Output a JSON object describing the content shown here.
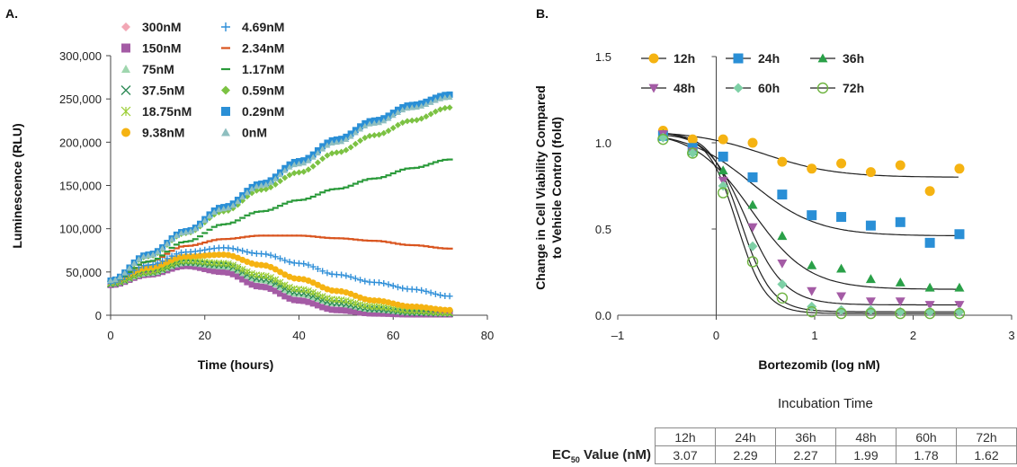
{
  "chart_data": [
    {
      "panel": "A.",
      "type": "scatter",
      "xlabel": "Time (hours)",
      "ylabel": "Luminescence (RLU)",
      "xlim": [
        0,
        80
      ],
      "ylim": [
        0,
        300000
      ],
      "xticks": [
        "0",
        "20",
        "40",
        "60",
        "80"
      ],
      "yticks": [
        "0",
        "50,000",
        "100,000",
        "150,000",
        "200,000",
        "250,000",
        "300,000"
      ],
      "legend_placement": "top-left, two columns",
      "series": [
        {
          "name": "300nM",
          "marker": "diamond",
          "color": "#f2a7b5",
          "x": [
            0,
            8,
            16,
            24,
            32,
            40,
            48,
            56,
            64,
            72
          ],
          "y": [
            35000,
            47000,
            57000,
            50000,
            33000,
            17000,
            6000,
            2000,
            1000,
            1000
          ]
        },
        {
          "name": "150nM",
          "marker": "square",
          "color": "#a45ba5",
          "x": [
            0,
            8,
            16,
            24,
            32,
            40,
            48,
            56,
            64,
            72
          ],
          "y": [
            35000,
            47000,
            57000,
            50000,
            33000,
            17000,
            6000,
            2000,
            1000,
            1000
          ]
        },
        {
          "name": "75nM",
          "marker": "triangle",
          "color": "#9fd6ae",
          "x": [
            0,
            8,
            16,
            24,
            32,
            40,
            48,
            56,
            64,
            72
          ],
          "y": [
            36000,
            48000,
            60000,
            56000,
            40000,
            24000,
            13000,
            6000,
            3000,
            2000
          ]
        },
        {
          "name": "37.5nM",
          "marker": "x",
          "color": "#2e8b57",
          "x": [
            0,
            8,
            16,
            24,
            32,
            40,
            48,
            56,
            64,
            72
          ],
          "y": [
            36000,
            49000,
            61000,
            58000,
            42000,
            26000,
            14000,
            7000,
            3000,
            2000
          ]
        },
        {
          "name": "18.75nM",
          "marker": "asterisk",
          "color": "#9acd32",
          "x": [
            0,
            8,
            16,
            24,
            32,
            40,
            48,
            56,
            64,
            72
          ],
          "y": [
            37000,
            50000,
            63000,
            60000,
            46000,
            30000,
            18000,
            10000,
            5000,
            3000
          ]
        },
        {
          "name": "9.38nM",
          "marker": "circle",
          "color": "#f5b312",
          "x": [
            0,
            8,
            16,
            24,
            32,
            40,
            48,
            56,
            64,
            72
          ],
          "y": [
            40000,
            55000,
            68000,
            70000,
            58000,
            42000,
            28000,
            17000,
            10000,
            6000
          ]
        },
        {
          "name": "4.69nM",
          "marker": "plus",
          "color": "#2f8fd8",
          "x": [
            0,
            8,
            16,
            24,
            32,
            40,
            48,
            56,
            64,
            72
          ],
          "y": [
            38000,
            58000,
            73000,
            78000,
            71000,
            60000,
            47000,
            38000,
            30000,
            22000
          ]
        },
        {
          "name": "2.34nM",
          "marker": "dash",
          "color": "#d9541e",
          "x": [
            0,
            8,
            16,
            24,
            32,
            40,
            48,
            56,
            64,
            72
          ],
          "y": [
            38000,
            62000,
            80000,
            88000,
            92000,
            92000,
            89000,
            86000,
            81000,
            77000
          ]
        },
        {
          "name": "1.17nM",
          "marker": "dash",
          "color": "#2a9a3a",
          "x": [
            0,
            8,
            16,
            24,
            32,
            40,
            48,
            56,
            64,
            72
          ],
          "y": [
            38000,
            62000,
            85000,
            105000,
            120000,
            133000,
            146000,
            158000,
            170000,
            180000
          ]
        },
        {
          "name": "0.59nM",
          "marker": "diamond",
          "color": "#7cc243",
          "x": [
            0,
            8,
            16,
            24,
            32,
            40,
            48,
            56,
            64,
            72
          ],
          "y": [
            40000,
            68000,
            95000,
            120000,
            145000,
            165000,
            188000,
            208000,
            225000,
            240000
          ]
        },
        {
          "name": "0.29nM",
          "marker": "square",
          "color": "#2a8fd6",
          "x": [
            0,
            8,
            16,
            24,
            32,
            40,
            48,
            56,
            64,
            72
          ],
          "y": [
            40000,
            70000,
            97000,
            125000,
            152000,
            178000,
            203000,
            225000,
            243000,
            255000
          ]
        },
        {
          "name": "0nM",
          "marker": "triangle",
          "color": "#8fbfc0",
          "x": [
            0,
            8,
            16,
            24,
            32,
            40,
            48,
            56,
            64,
            72
          ],
          "y": [
            40000,
            69000,
            96000,
            123000,
            150000,
            175000,
            200000,
            222000,
            240000,
            252000
          ]
        }
      ]
    },
    {
      "panel": "B.",
      "type": "scatter",
      "xlabel": "Bortezomib (log nM)",
      "ylabel_line1": "Change in Cell Viability Compared",
      "ylabel_line2": "to Vehicle Control (fold)",
      "xlim": [
        -1,
        3
      ],
      "ylim": [
        0,
        1.5
      ],
      "xticks": [
        "–1",
        "0",
        "1",
        "2",
        "3"
      ],
      "yticks": [
        "0.0",
        "0.5",
        "1.0",
        "1.5"
      ],
      "legend_placement": "top, three columns",
      "x": [
        -0.54,
        -0.24,
        0.07,
        0.37,
        0.67,
        0.97,
        1.27,
        1.57,
        1.87,
        2.17,
        2.47
      ],
      "series": [
        {
          "name": "12h",
          "marker": "circle",
          "color": "#f5b312",
          "y": [
            1.07,
            1.02,
            1.02,
            1.0,
            0.89,
            0.85,
            0.88,
            0.83,
            0.87,
            0.72,
            0.85
          ],
          "fit": {
            "top": 1.07,
            "bottom": 0.8,
            "log_ec50": 0.487,
            "hill": 1.2
          }
        },
        {
          "name": "24h",
          "marker": "square",
          "color": "#2a8fd6",
          "y": [
            1.04,
            0.97,
            0.92,
            0.8,
            0.7,
            0.58,
            0.57,
            0.52,
            0.54,
            0.42,
            0.47
          ],
          "fit": {
            "top": 1.07,
            "bottom": 0.46,
            "log_ec50": 0.36,
            "hill": 1.3
          }
        },
        {
          "name": "36h",
          "marker": "triangle",
          "color": "#2aa048",
          "y": [
            1.05,
            0.95,
            0.84,
            0.64,
            0.46,
            0.29,
            0.27,
            0.21,
            0.19,
            0.16,
            0.16
          ],
          "fit": {
            "top": 1.07,
            "bottom": 0.15,
            "log_ec50": 0.356,
            "hill": 1.5
          }
        },
        {
          "name": "48h",
          "marker": "triangle-down",
          "color": "#a45ba5",
          "y": [
            1.05,
            0.95,
            0.78,
            0.51,
            0.3,
            0.14,
            0.11,
            0.08,
            0.08,
            0.06,
            0.06
          ],
          "fit": {
            "top": 1.07,
            "bottom": 0.06,
            "log_ec50": 0.299,
            "hill": 2.2
          }
        },
        {
          "name": "60h",
          "marker": "diamond",
          "color": "#7ed0a6",
          "y": [
            1.03,
            0.94,
            0.75,
            0.4,
            0.18,
            0.05,
            0.03,
            0.03,
            0.02,
            0.02,
            0.02
          ],
          "fit": {
            "top": 1.06,
            "bottom": 0.02,
            "log_ec50": 0.25,
            "hill": 2.8
          }
        },
        {
          "name": "72h",
          "marker": "circle-open",
          "color": "#6db33f",
          "y": [
            1.02,
            0.94,
            0.71,
            0.31,
            0.1,
            0.02,
            0.01,
            0.01,
            0.01,
            0.01,
            0.01
          ],
          "fit": {
            "top": 1.05,
            "bottom": 0.01,
            "log_ec50": 0.21,
            "hill": 3.0
          }
        }
      ]
    }
  ],
  "table": {
    "title": "Incubation Time",
    "row_label": "EC",
    "row_label_sub": "50",
    "row_label_rest": " Value (nM)",
    "headers": [
      "12h",
      "24h",
      "36h",
      "48h",
      "60h",
      "72h"
    ],
    "values": [
      "3.07",
      "2.29",
      "2.27",
      "1.99",
      "1.78",
      "1.62"
    ]
  }
}
